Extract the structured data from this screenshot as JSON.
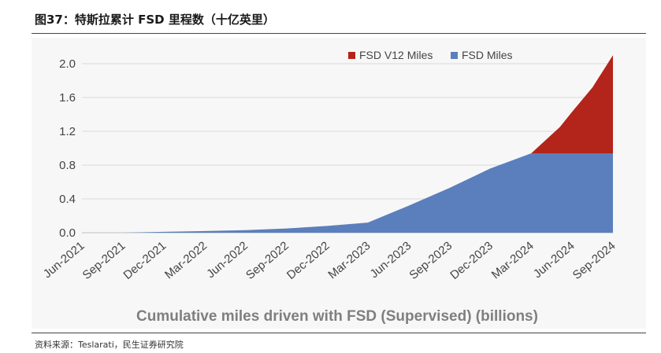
{
  "header": {
    "title": "图37：特斯拉累计 FSD 里程数（十亿英里）"
  },
  "footer": {
    "source": "资料来源：Teslarati，民生证券研究院"
  },
  "colors": {
    "fsd_miles": "#5b7fbc",
    "fsd_v12_miles": "#b3241a",
    "grid": "#d9d9d9",
    "panel": "#f7f7f7"
  },
  "chart_data": {
    "type": "area",
    "stacked": true,
    "title": "",
    "xlabel": "Cumulative miles driven with FSD (Supervised) (billions)",
    "ylabel": "",
    "ylim": [
      0,
      2.0
    ],
    "yticks": [
      "0.0",
      "0.4",
      "0.8",
      "1.2",
      "1.6",
      "2.0"
    ],
    "grid": true,
    "legend": "top-right",
    "categories": [
      "Jun-2021",
      "Sep-2021",
      "Dec-2021",
      "Mar-2022",
      "Jun-2022",
      "Sep-2022",
      "Dec-2022",
      "Mar-2023",
      "Jun-2023",
      "Sep-2023",
      "Dec-2023",
      "Mar-2024",
      "Jun-2024",
      "Sep-2024"
    ],
    "series": [
      {
        "name": "FSD Miles",
        "x": [
          0,
          1,
          2,
          3,
          4,
          5,
          6,
          7,
          8,
          9,
          10,
          11,
          11.7,
          12,
          12.5,
          13
        ],
        "values": [
          0.0,
          0.0,
          0.01,
          0.02,
          0.03,
          0.05,
          0.08,
          0.12,
          0.32,
          0.53,
          0.76,
          0.94,
          0.94,
          0.94,
          0.94,
          0.94
        ]
      },
      {
        "name": "FSD V12 Miles",
        "x": [
          0,
          1,
          2,
          3,
          4,
          5,
          6,
          7,
          8,
          9,
          10,
          11,
          11.7,
          12,
          12.5,
          13
        ],
        "values": [
          0.0,
          0.0,
          0.0,
          0.0,
          0.0,
          0.0,
          0.0,
          0.0,
          0.0,
          0.0,
          0.0,
          0.0,
          0.31,
          0.49,
          0.78,
          1.16
        ]
      }
    ]
  }
}
